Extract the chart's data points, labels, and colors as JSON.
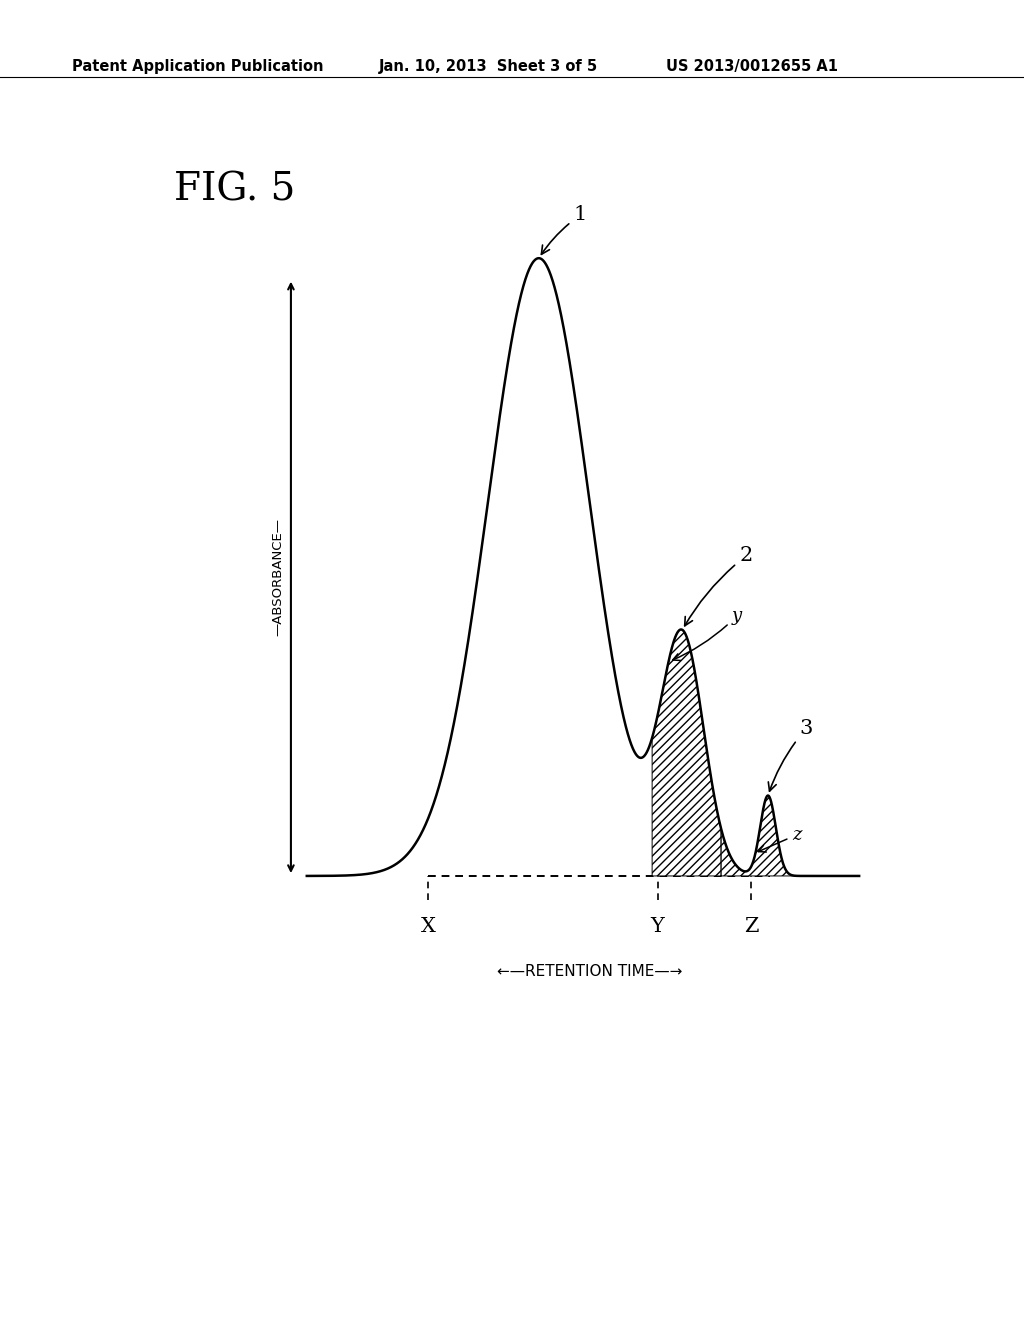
{
  "fig_label": "FIG. 5",
  "header_left": "Patent Application Publication",
  "header_center": "Jan. 10, 2013  Sheet 3 of 5",
  "header_right": "US 2013/0012655 A1",
  "ylabel": "ABSORBANCE",
  "xlabel": "←—RETENTION TIME—→",
  "label_X": "X",
  "label_Y": "Y",
  "label_Z": "Z",
  "label_1": "1",
  "label_2": "2",
  "label_3": "3",
  "label_y": "y",
  "label_z": "z",
  "background_color": "#ffffff",
  "curve_color": "#000000",
  "hatch_pattern": "////",
  "dashed_line_color": "#000000"
}
